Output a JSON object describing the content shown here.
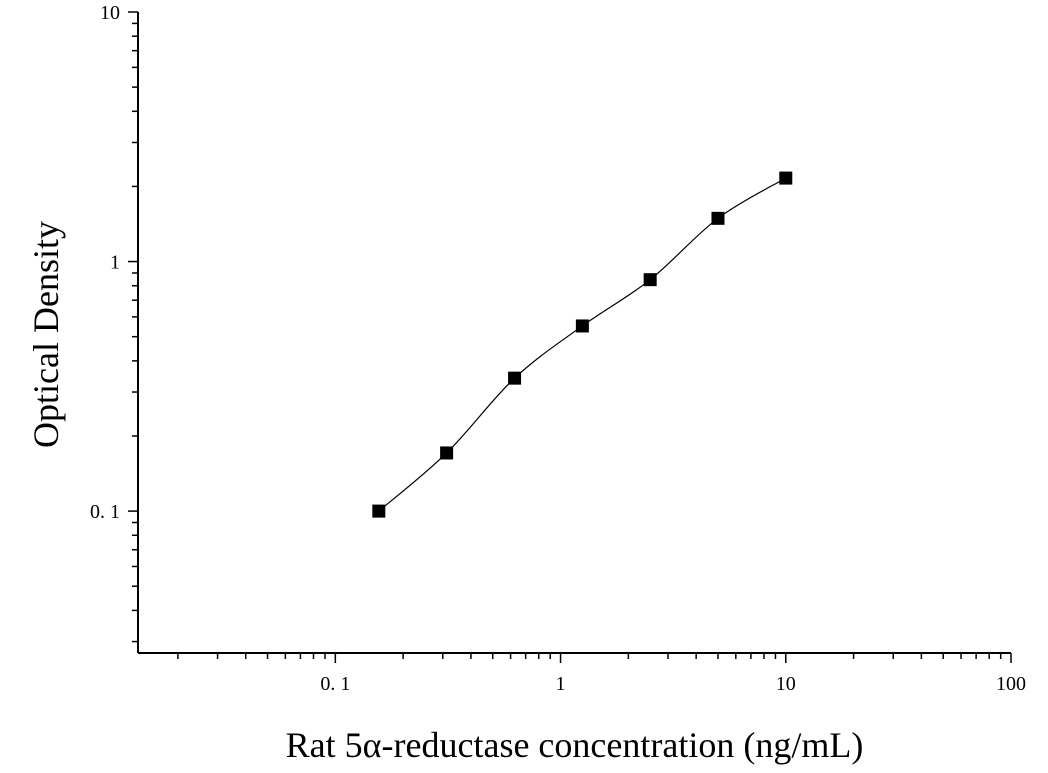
{
  "chart_data": {
    "type": "scatter",
    "title": "",
    "xlabel": "Rat 5α-reductase concentration (ng/mL)",
    "ylabel": "Optical Density",
    "x_scale": "log",
    "y_scale": "log",
    "xlim": [
      0.0133,
      100
    ],
    "ylim": [
      0.027,
      10
    ],
    "grid": false,
    "legend": "none",
    "x_ticks": [
      {
        "value": 0.1,
        "label": "0. 1"
      },
      {
        "value": 1,
        "label": "1"
      },
      {
        "value": 10,
        "label": "10"
      },
      {
        "value": 100,
        "label": "100"
      }
    ],
    "y_ticks": [
      {
        "value": 0.1,
        "label": "0. 1"
      },
      {
        "value": 1,
        "label": "1"
      },
      {
        "value": 10,
        "label": "10"
      }
    ],
    "series": [
      {
        "x": [
          0.156,
          0.312,
          0.625,
          1.25,
          2.5,
          5,
          10
        ],
        "y": [
          0.1,
          0.171,
          0.341,
          0.552,
          0.846,
          1.49,
          2.16
        ]
      }
    ],
    "colors": {
      "marker": "#000000",
      "line": "#000000"
    }
  }
}
